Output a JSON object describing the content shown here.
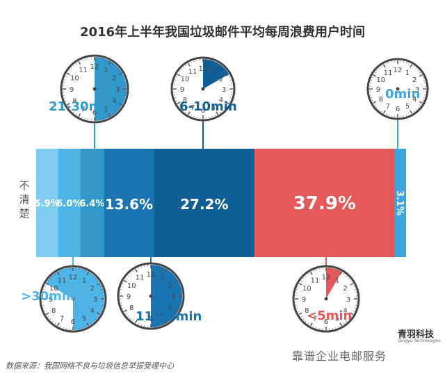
{
  "chart_data": {
    "type": "bar",
    "title": "2016年上半年我国垃圾邮件平均每周浪费用户时间",
    "row_label": "不清楚",
    "segments": [
      {
        "value": 5.9,
        "label": "5.9%",
        "color": "#7fcdf0",
        "clock": ""
      },
      {
        "value": 6.0,
        "label": "6.0%",
        "color": "#4eb5e6",
        "clock": ">30min"
      },
      {
        "value": 6.4,
        "label": "6.4%",
        "color": "#3399cc",
        "clock": "21-30min"
      },
      {
        "value": 13.6,
        "label": "13.6%",
        "color": "#1a74b1",
        "clock": "11-20min"
      },
      {
        "value": 27.2,
        "label": "27.2%",
        "color": "#105f97",
        "clock": "6-10min"
      },
      {
        "value": 37.9,
        "label": "37.9%",
        "color": "#e45858",
        "clock": "<5min"
      },
      {
        "value": 3.1,
        "label": "3.1%",
        "color": "#3aa6df",
        "clock": "0min"
      }
    ]
  },
  "clock_numbers": [
    "12",
    "1",
    "2",
    "3",
    "4",
    "5",
    "6",
    "7",
    "8",
    "9",
    "10",
    "11"
  ],
  "footer": {
    "source": "数据来源：我国网络不良与垃圾信息举报受理中心",
    "brand": "青羽科技",
    "brand_sub": "Qingyu Technologies",
    "wechat": "靠谱企业电邮服务"
  }
}
